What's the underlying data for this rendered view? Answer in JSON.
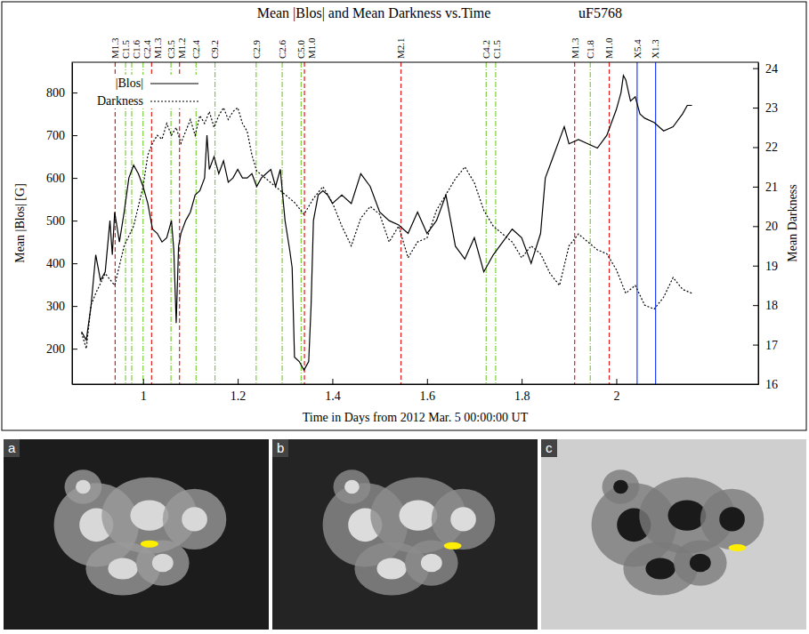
{
  "chart_data": {
    "type": "line",
    "title": "Mean |Blos| and Mean Darkness vs.Time",
    "subtitle": "uF5768",
    "x_label": "Time in Days from 2012 Mar. 5 00:00:00 UT",
    "y_label": "Mean |Blos| [G]",
    "y2_label": "Mean Darkness",
    "xlim": [
      0.85,
      2.3
    ],
    "ylim": [
      117,
      871
    ],
    "y2lim": [
      16,
      24.15
    ],
    "xticks": [
      1,
      1.2,
      1.4,
      1.6,
      1.8,
      2
    ],
    "yticks": [
      200,
      300,
      400,
      500,
      600,
      700,
      800
    ],
    "y2ticks": [
      16,
      17,
      18,
      19,
      20,
      21,
      22,
      23,
      24
    ],
    "legend": "upper left",
    "series": [
      {
        "name": "|Blos|",
        "color": "#000000",
        "line_style": "solid",
        "x": [
          0.87,
          0.88,
          0.89,
          0.9,
          0.91,
          0.92,
          0.93,
          0.935,
          0.94,
          0.95,
          0.96,
          0.97,
          0.98,
          0.99,
          1.0,
          1.01,
          1.02,
          1.03,
          1.04,
          1.05,
          1.06,
          1.065,
          1.07,
          1.075,
          1.08,
          1.09,
          1.1,
          1.11,
          1.12,
          1.13,
          1.135,
          1.14,
          1.15,
          1.16,
          1.17,
          1.18,
          1.19,
          1.2,
          1.21,
          1.22,
          1.23,
          1.24,
          1.25,
          1.26,
          1.27,
          1.28,
          1.29,
          1.3,
          1.31,
          1.315,
          1.32,
          1.33,
          1.34,
          1.35,
          1.355,
          1.36,
          1.37,
          1.38,
          1.39,
          1.4,
          1.42,
          1.44,
          1.46,
          1.48,
          1.5,
          1.52,
          1.54,
          1.56,
          1.58,
          1.6,
          1.62,
          1.64,
          1.66,
          1.68,
          1.7,
          1.72,
          1.74,
          1.76,
          1.78,
          1.8,
          1.82,
          1.84,
          1.85,
          1.86,
          1.87,
          1.88,
          1.89,
          1.9,
          1.92,
          1.94,
          1.96,
          1.98,
          2.0,
          2.01,
          2.015,
          2.02,
          2.03,
          2.04,
          2.05,
          2.06,
          2.08,
          2.1,
          2.12,
          2.14,
          2.15,
          2.16
        ],
        "values": [
          240,
          220,
          300,
          420,
          360,
          380,
          500,
          420,
          520,
          450,
          520,
          600,
          630,
          610,
          580,
          540,
          480,
          470,
          450,
          460,
          500,
          430,
          260,
          440,
          470,
          500,
          520,
          560,
          570,
          600,
          700,
          620,
          650,
          610,
          640,
          590,
          600,
          620,
          600,
          600,
          610,
          580,
          600,
          610,
          620,
          580,
          620,
          500,
          430,
          390,
          180,
          170,
          150,
          170,
          300,
          500,
          560,
          570,
          560,
          540,
          560,
          540,
          610,
          580,
          520,
          500,
          490,
          470,
          520,
          470,
          500,
          560,
          440,
          410,
          460,
          380,
          420,
          450,
          480,
          460,
          400,
          470,
          600,
          630,
          660,
          690,
          720,
          680,
          690,
          680,
          670,
          700,
          760,
          800,
          840,
          830,
          780,
          790,
          750,
          740,
          730,
          710,
          720,
          750,
          770,
          770
        ]
      },
      {
        "name": "Darkness",
        "color": "#000000",
        "line_style": "dotted",
        "axis": "y2",
        "x": [
          0.87,
          0.88,
          0.89,
          0.9,
          0.92,
          0.94,
          0.95,
          0.96,
          0.98,
          0.99,
          1.0,
          1.01,
          1.02,
          1.03,
          1.04,
          1.05,
          1.06,
          1.07,
          1.08,
          1.09,
          1.1,
          1.11,
          1.12,
          1.13,
          1.14,
          1.15,
          1.16,
          1.17,
          1.18,
          1.19,
          1.2,
          1.21,
          1.22,
          1.23,
          1.24,
          1.26,
          1.28,
          1.3,
          1.32,
          1.34,
          1.36,
          1.38,
          1.4,
          1.42,
          1.44,
          1.46,
          1.48,
          1.5,
          1.52,
          1.54,
          1.56,
          1.58,
          1.6,
          1.62,
          1.64,
          1.66,
          1.68,
          1.7,
          1.72,
          1.74,
          1.76,
          1.78,
          1.8,
          1.82,
          1.84,
          1.86,
          1.88,
          1.9,
          1.92,
          1.94,
          1.96,
          1.98,
          2.0,
          2.02,
          2.04,
          2.06,
          2.08,
          2.1,
          2.12,
          2.14,
          2.16
        ],
        "values": [
          17.3,
          16.9,
          18.0,
          18.3,
          18.8,
          18.5,
          19.0,
          19.5,
          20.0,
          20.5,
          21.0,
          21.8,
          22.1,
          22.3,
          22.2,
          22.6,
          22.3,
          22.5,
          22.1,
          22.4,
          22.7,
          22.3,
          22.8,
          22.6,
          22.9,
          22.5,
          22.8,
          23.0,
          22.7,
          22.9,
          23.0,
          22.6,
          22.4,
          21.8,
          21.4,
          21.2,
          21.0,
          20.8,
          20.6,
          20.3,
          20.7,
          21.0,
          20.6,
          20.0,
          19.5,
          20.2,
          20.5,
          20.3,
          19.6,
          20.0,
          19.2,
          19.6,
          19.7,
          20.4,
          20.8,
          21.2,
          21.5,
          21.1,
          20.4,
          20.0,
          19.8,
          19.6,
          19.2,
          19.5,
          19.3,
          18.8,
          18.5,
          19.5,
          19.8,
          19.6,
          19.4,
          19.3,
          18.9,
          18.3,
          18.5,
          18.0,
          17.9,
          18.2,
          18.7,
          18.4,
          18.3
        ]
      }
    ],
    "annotations": [
      {
        "label": "M1.3",
        "x": 0.941,
        "color": "#e41a1c",
        "line_style": "dashed"
      },
      {
        "label": "C1.5",
        "x": 0.963,
        "color": "#7ccf3a",
        "line_style": "dashdot"
      },
      {
        "label": "C1.6",
        "x": 0.976,
        "color": "#7ccf3a",
        "line_style": "dashdot"
      },
      {
        "label": "C2.4",
        "x": 1.0,
        "color": "#7ccf3a",
        "line_style": "dashdot"
      },
      {
        "label": "M1.3",
        "x": 1.018,
        "color": "#e41a1c",
        "line_style": "dashed"
      },
      {
        "label": "C3.5",
        "x": 1.059,
        "color": "#7ccf3a",
        "line_style": "dashdot"
      },
      {
        "label": "M1.2",
        "x": 1.077,
        "color": "#e41a1c",
        "line_style": "dashed"
      },
      {
        "label": "C2.4",
        "x": 1.112,
        "color": "#7ccf3a",
        "line_style": "dashdot"
      },
      {
        "label": "C9.2",
        "x": 1.152,
        "color": "#7ccf3a",
        "line_style": "dashdot"
      },
      {
        "label": "C2.9",
        "x": 1.239,
        "color": "#7ccf3a",
        "line_style": "dashdot"
      },
      {
        "label": "C2.6",
        "x": 1.294,
        "color": "#7ccf3a",
        "line_style": "dashdot"
      },
      {
        "label": "C5.0",
        "x": 1.334,
        "color": "#7ccf3a",
        "line_style": "dashdot"
      },
      {
        "label": "M1.0",
        "x": 1.341,
        "color": "#e41a1c",
        "line_style": "dashed"
      },
      {
        "label": "M2.1",
        "x": 1.545,
        "color": "#e41a1c",
        "line_style": "dashed"
      },
      {
        "label": "C4.2",
        "x": 1.725,
        "color": "#7ccf3a",
        "line_style": "dashdot"
      },
      {
        "label": "C1.5",
        "x": 1.745,
        "color": "#7ccf3a",
        "line_style": "dashdot"
      },
      {
        "label": "M1.3",
        "x": 1.912,
        "color": "#e41a1c",
        "line_style": "dashed"
      },
      {
        "label": "C1.8",
        "x": 1.945,
        "color": "#7ccf3a",
        "line_style": "dashdot"
      },
      {
        "label": "M1.0",
        "x": 1.985,
        "color": "#e41a1c",
        "line_style": "dashed"
      },
      {
        "label": "X5.4",
        "x": 2.044,
        "color": "#1f3fff",
        "line_style": "solid"
      },
      {
        "label": "X1.3",
        "x": 2.083,
        "color": "#1f3fff",
        "line_style": "solid"
      }
    ]
  },
  "panels": [
    {
      "letter": "a"
    },
    {
      "letter": "b"
    },
    {
      "letter": "c"
    }
  ]
}
